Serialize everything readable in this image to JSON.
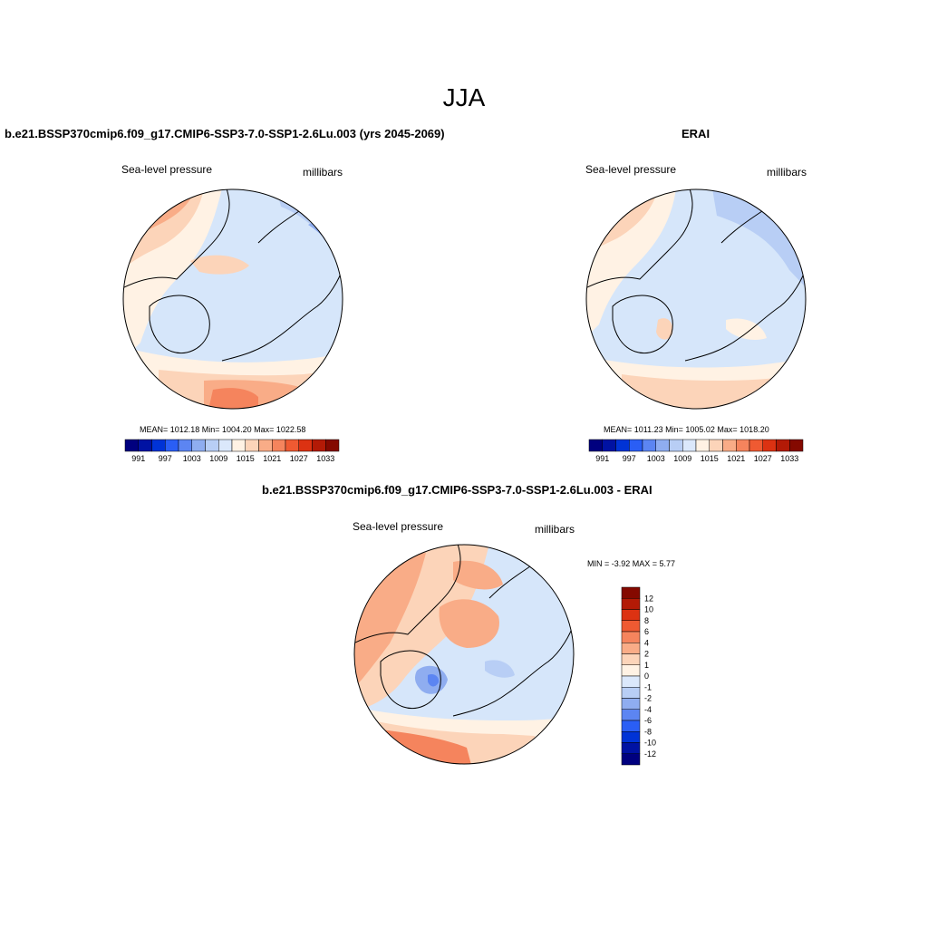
{
  "figure": {
    "season_title": "JJA"
  },
  "panels": {
    "model": {
      "title": "b.e21.BSSP370cmip6.f09_g17.CMIP6-SSP3-7.0-SSP1-2.6Lu.003 (yrs 2045-2069)",
      "left_label": "Sea-level pressure",
      "right_label": "millibars",
      "stats": "MEAN= 1012.18  Min= 1004.20  Max= 1022.58"
    },
    "obs": {
      "title": "ERAI",
      "left_label": "Sea-level pressure",
      "right_label": "millibars",
      "stats": "MEAN= 1011.23  Min= 1005.02  Max= 1018.20"
    },
    "diff": {
      "title": "b.e21.BSSP370cmip6.f09_g17.CMIP6-SSP3-7.0-SSP1-2.6Lu.003 - ERAI",
      "left_label": "Sea-level pressure",
      "right_label": "millibars",
      "minmax": "MIN =  -3.92 MAX =   5.77"
    }
  },
  "colorbar_abs": {
    "colors": [
      "#00007f",
      "#0012a3",
      "#0033d6",
      "#2a5ef5",
      "#5c85f2",
      "#8fadf0",
      "#b8cef5",
      "#dbe8fb",
      "#fff2e4",
      "#fcd4b9",
      "#f9ac87",
      "#f5845d",
      "#ef5a32",
      "#dc3212",
      "#b31a06",
      "#840900"
    ],
    "tick_labels": [
      "991",
      "997",
      "1003",
      "1009",
      "1015",
      "1021",
      "1027",
      "1033"
    ]
  },
  "colorbar_diff": {
    "colors": [
      "#840900",
      "#b31a06",
      "#dc3212",
      "#ef5a32",
      "#f5845d",
      "#f9ac87",
      "#fcd4b9",
      "#fff2e4",
      "#dbe8fb",
      "#b8cef5",
      "#8fadf0",
      "#5c85f2",
      "#2a5ef5",
      "#0033d6",
      "#0012a3",
      "#00007f"
    ],
    "tick_labels": [
      "12",
      "10",
      "8",
      "6",
      "4",
      "2",
      "1",
      "0",
      "-1",
      "-2",
      "-4",
      "-6",
      "-8",
      "-10",
      "-12"
    ]
  },
  "map_colors": {
    "ocean_light_blue": "#d6e6fa",
    "mid_blue": "#b8cef5",
    "blue": "#8fadf0",
    "strong_blue": "#5c85f2",
    "cream": "#fff2e4",
    "peach": "#fcd4b9",
    "salmon": "#f9ac87",
    "orange": "#f5845d",
    "red": "#ef5a32"
  }
}
